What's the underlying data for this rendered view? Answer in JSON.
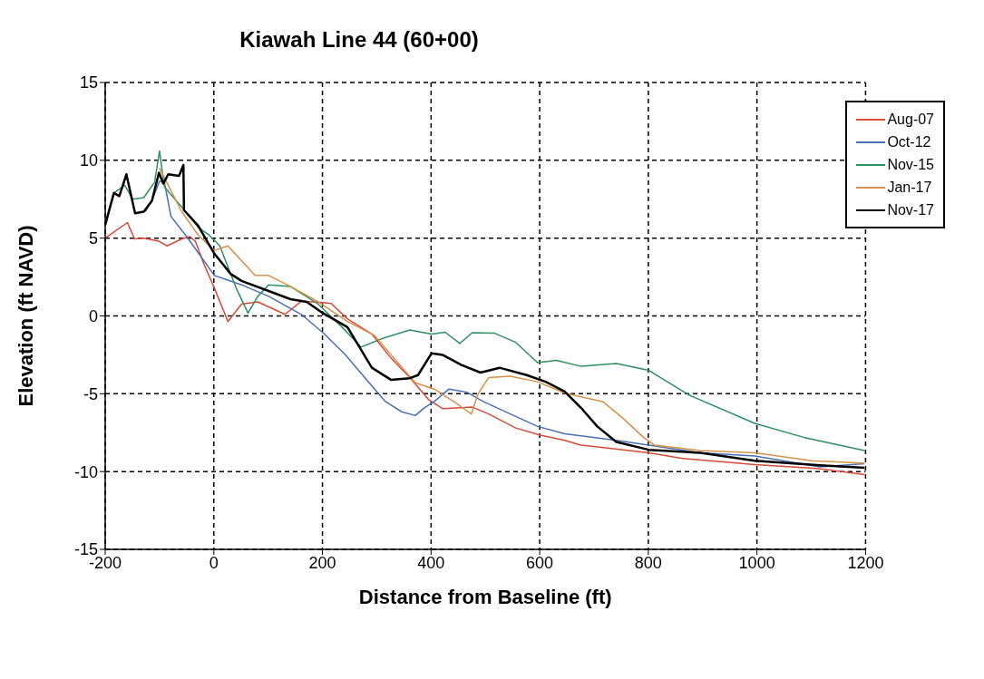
{
  "chart_data": {
    "type": "line",
    "title": "Kiawah Line 44 (60+00)",
    "xlabel": "Distance from Baseline (ft)",
    "ylabel": "Elevation (ft NAVD)",
    "xlim": [
      -200,
      1200
    ],
    "xticks": [
      -200,
      0,
      200,
      400,
      600,
      800,
      1000,
      1200
    ],
    "ylim": [
      -15,
      15
    ],
    "yticks": [
      -15,
      -10,
      -5,
      0,
      5,
      10,
      15
    ],
    "grid": true,
    "legend": "top right",
    "marker": "none",
    "line_style": "solid",
    "series": [
      {
        "name": "Aug-07",
        "color": "#d8493a",
        "x": [
          -200,
          -159,
          -146,
          -129,
          -101,
          -86,
          -59,
          -44,
          -34,
          -19,
          1,
          26,
          51,
          81,
          131,
          161,
          201,
          216,
          246,
          291,
          326,
          361,
          396,
          421,
          456,
          476,
          506,
          556,
          601,
          646,
          676,
          703,
          801,
          861,
          996,
          1111,
          1198
        ],
        "values": [
          5.0,
          6.0,
          4.95,
          5.0,
          4.8,
          4.5,
          4.95,
          5.1,
          4.8,
          3.4,
          1.8,
          -0.36,
          0.76,
          0.9,
          0.1,
          0.94,
          0.86,
          0.8,
          -0.18,
          -1.17,
          -2.7,
          -3.96,
          -5.4,
          -5.95,
          -5.9,
          -5.86,
          -6.3,
          -7.2,
          -7.66,
          -8.0,
          -8.3,
          -8.4,
          -8.8,
          -9.15,
          -9.55,
          -9.8,
          -10.2
        ]
      },
      {
        "name": "Oct-12",
        "color": "#4a6fb5",
        "x": [
          -126,
          -114,
          -100,
          -91,
          -79,
          -49,
          1,
          51,
          101,
          161,
          201,
          241,
          286,
          316,
          346,
          371,
          386,
          406,
          433,
          466,
          496,
          546,
          596,
          646,
          676,
          741,
          801,
          896,
          996,
          1116,
          1198
        ],
        "values": [
          6.7,
          7.4,
          8.65,
          8.6,
          6.4,
          5.05,
          2.6,
          2.0,
          1.26,
          0.1,
          -1.08,
          -2.45,
          -4.3,
          -5.5,
          -6.16,
          -6.4,
          -5.95,
          -5.5,
          -4.7,
          -4.9,
          -5.5,
          -6.3,
          -7.1,
          -7.57,
          -7.7,
          -8.0,
          -8.3,
          -8.8,
          -9.0,
          -9.7,
          -9.5
        ]
      },
      {
        "name": "Nov-15",
        "color": "#2e9060",
        "x": [
          -200,
          -184,
          -164,
          -149,
          -129,
          -109,
          -100,
          -91,
          -84,
          -59,
          -29,
          -9,
          11,
          41,
          63,
          81,
          101,
          141,
          191,
          236,
          271,
          311,
          361,
          401,
          426,
          453,
          476,
          516,
          556,
          596,
          631,
          676,
          741,
          801,
          876,
          996,
          1086,
          1198
        ],
        "values": [
          5.8,
          7.9,
          8.4,
          7.5,
          7.6,
          8.6,
          10.6,
          8.3,
          8.0,
          7.0,
          5.7,
          5.2,
          4.5,
          1.8,
          0.18,
          1.26,
          2.0,
          1.9,
          0.8,
          -0.72,
          -2.0,
          -1.44,
          -0.9,
          -1.17,
          -1.05,
          -1.77,
          -1.08,
          -1.1,
          -1.7,
          -3.0,
          -2.85,
          -3.24,
          -3.06,
          -3.5,
          -5.1,
          -6.9,
          -7.8,
          -8.65
        ]
      },
      {
        "name": "Jan-17",
        "color": "#d9904a",
        "x": [
          -100,
          -84,
          -59,
          -29,
          1,
          26,
          76,
          101,
          141,
          191,
          246,
          296,
          331,
          371,
          406,
          446,
          474,
          486,
          506,
          546,
          596,
          646,
          676,
          716,
          751,
          791,
          811,
          896,
          996,
          1101,
          1198
        ],
        "values": [
          9.5,
          8.4,
          6.7,
          5.2,
          4.2,
          4.5,
          2.6,
          2.6,
          1.9,
          0.94,
          -0.36,
          -1.26,
          -2.7,
          -4.3,
          -4.7,
          -5.6,
          -6.3,
          -5.05,
          -3.96,
          -3.87,
          -4.23,
          -4.95,
          -5.2,
          -5.5,
          -6.5,
          -7.8,
          -8.3,
          -8.65,
          -8.8,
          -9.3,
          -9.46
        ]
      },
      {
        "name": "Nov-17",
        "color": "#000000",
        "x": [
          -200,
          -184,
          -174,
          -161,
          -145,
          -129,
          -114,
          -101,
          -93,
          -84,
          -64,
          -56,
          -55,
          -29,
          1,
          31,
          51,
          101,
          141,
          171,
          201,
          246,
          291,
          326,
          361,
          376,
          401,
          421,
          456,
          491,
          526,
          576,
          611,
          646,
          676,
          706,
          741,
          801,
          896,
          996,
          1116,
          1198
        ],
        "values": [
          5.85,
          7.9,
          7.7,
          9.1,
          6.6,
          6.7,
          7.4,
          9.2,
          8.5,
          9.1,
          9.0,
          9.7,
          6.8,
          5.8,
          4.0,
          2.7,
          2.25,
          1.6,
          1.08,
          0.9,
          0.18,
          -0.72,
          -3.33,
          -4.1,
          -4.0,
          -3.8,
          -2.4,
          -2.5,
          -3.15,
          -3.64,
          -3.33,
          -3.8,
          -4.23,
          -4.86,
          -5.9,
          -7.1,
          -8.1,
          -8.6,
          -8.8,
          -9.3,
          -9.6,
          -9.76
        ]
      }
    ]
  }
}
